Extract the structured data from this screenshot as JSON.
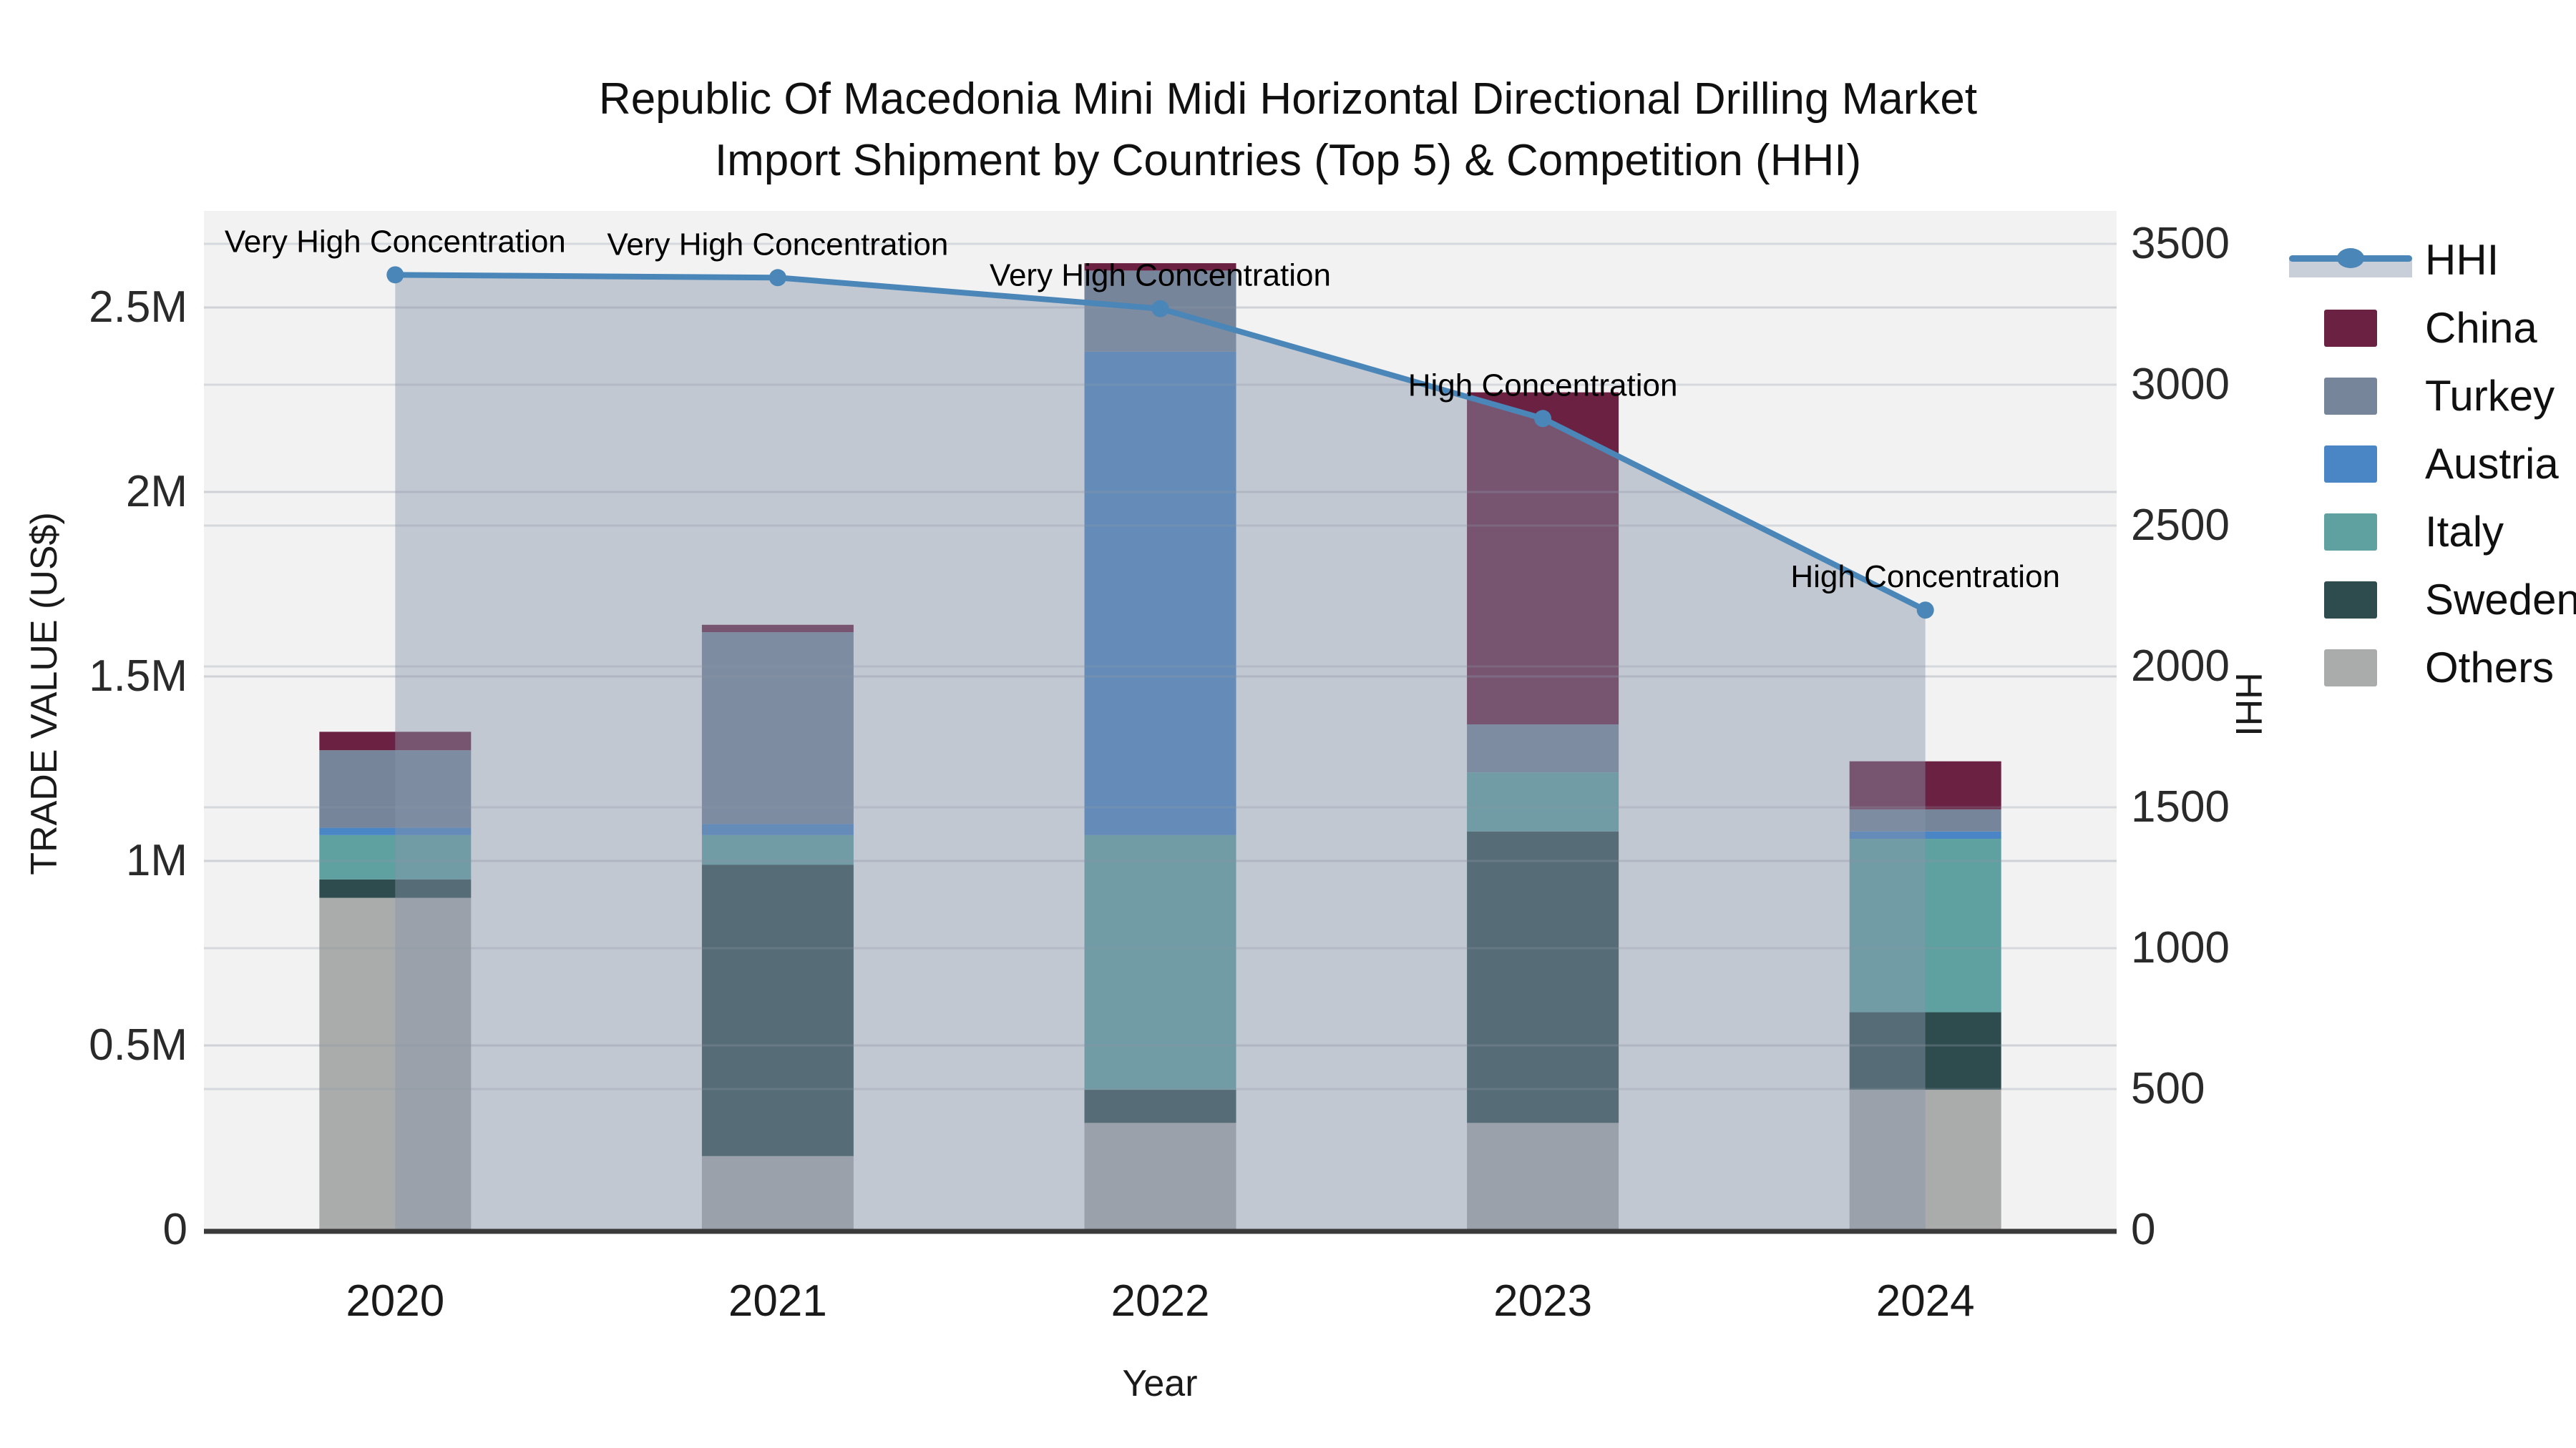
{
  "title": {
    "line1": "Republic Of Macedonia Mini Midi Horizontal Directional Drilling Market",
    "line2": "Import Shipment by Countries (Top 5) & Competition (HHI)"
  },
  "axes": {
    "x_label": "Year",
    "y_left_label": "TRADE VALUE (US$)",
    "y_right_label": "HHI",
    "y_left_ticks": [
      "0",
      "0.5M",
      "1M",
      "1.5M",
      "2M",
      "2.5M"
    ],
    "y_left_tick_values": [
      0,
      0.5,
      1,
      1.5,
      2,
      2.5
    ],
    "y_right_ticks": [
      "0",
      "500",
      "1000",
      "1500",
      "2000",
      "2500",
      "3000",
      "3500"
    ],
    "y_right_tick_values": [
      0,
      500,
      1000,
      1500,
      2000,
      2500,
      3000,
      3500
    ]
  },
  "chart_data": {
    "type": "bar+line",
    "value_unit": "M US$ (trade value, left axis); HHI index (right axis)",
    "categories": [
      "2020",
      "2021",
      "2022",
      "2023",
      "2024"
    ],
    "series": [
      {
        "name": "China",
        "color": "#6b2142",
        "values": [
          0.05,
          0.02,
          0.02,
          0.9,
          0.13
        ]
      },
      {
        "name": "Turkey",
        "color": "#76859a",
        "values": [
          0.21,
          0.52,
          0.22,
          0.13,
          0.06
        ]
      },
      {
        "name": "Austria",
        "color": "#4a86c5",
        "values": [
          0.02,
          0.03,
          1.31,
          0.0,
          0.02
        ]
      },
      {
        "name": "Italy",
        "color": "#5fa0a0",
        "values": [
          0.12,
          0.08,
          0.69,
          0.16,
          0.47
        ]
      },
      {
        "name": "Sweden",
        "color": "#2e4c4e",
        "values": [
          0.05,
          0.79,
          0.09,
          0.79,
          0.21
        ]
      },
      {
        "name": "Others",
        "color": "#a9acaa",
        "values": [
          0.9,
          0.2,
          0.29,
          0.29,
          0.38
        ]
      }
    ],
    "stack_order": [
      "Others",
      "Sweden",
      "Italy",
      "Austria",
      "Turkey",
      "China"
    ],
    "hhi": {
      "name": "HHI",
      "color": "#4a86b8",
      "area_color": "rgba(136,148,170,0.45)",
      "values": [
        3390,
        3380,
        3270,
        2880,
        2200
      ]
    },
    "annotations": [
      "Very High Concentration",
      "Very High Concentration",
      "Very High Concentration",
      "High Concentration",
      "High Concentration"
    ],
    "ylim_left": [
      0,
      2.76
    ],
    "ylim_right": [
      0,
      3500
    ],
    "grid": true,
    "legend_position": "right"
  }
}
